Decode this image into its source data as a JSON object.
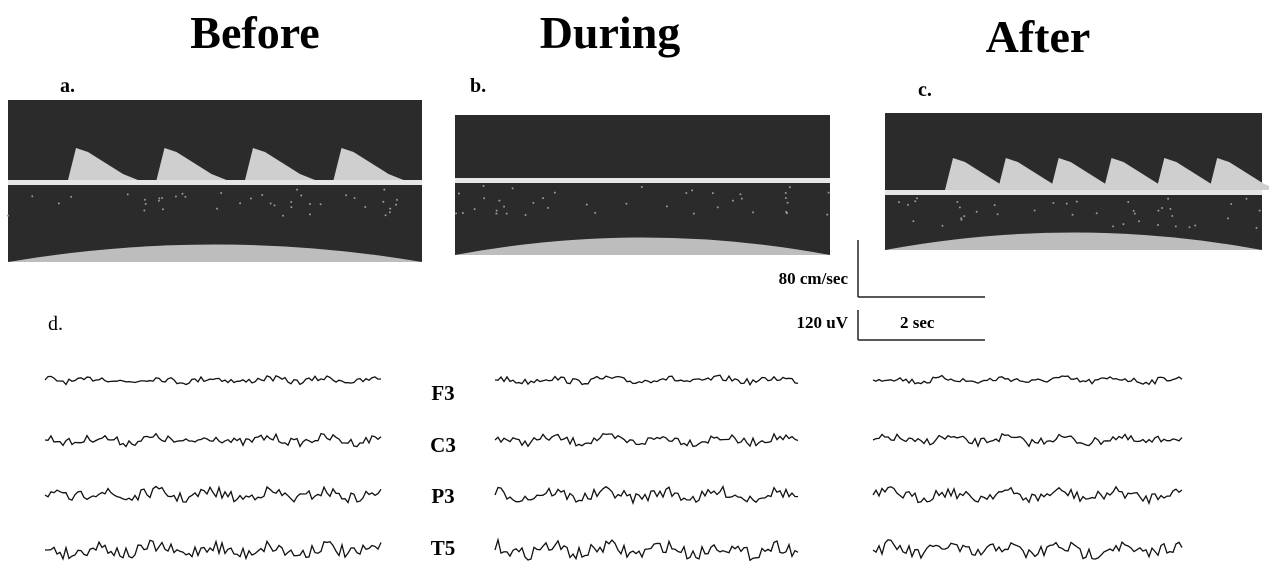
{
  "columns": [
    {
      "title": "Before",
      "panel": "a."
    },
    {
      "title": "During",
      "panel": "b."
    },
    {
      "title": "After",
      "panel": "c."
    }
  ],
  "eeg": {
    "panel": "d.",
    "channels": [
      "F3",
      "C3",
      "P3",
      "T5"
    ]
  },
  "scale": {
    "velocity": "80 cm/sec",
    "voltage": "120 uV",
    "time": "2 sec"
  }
}
